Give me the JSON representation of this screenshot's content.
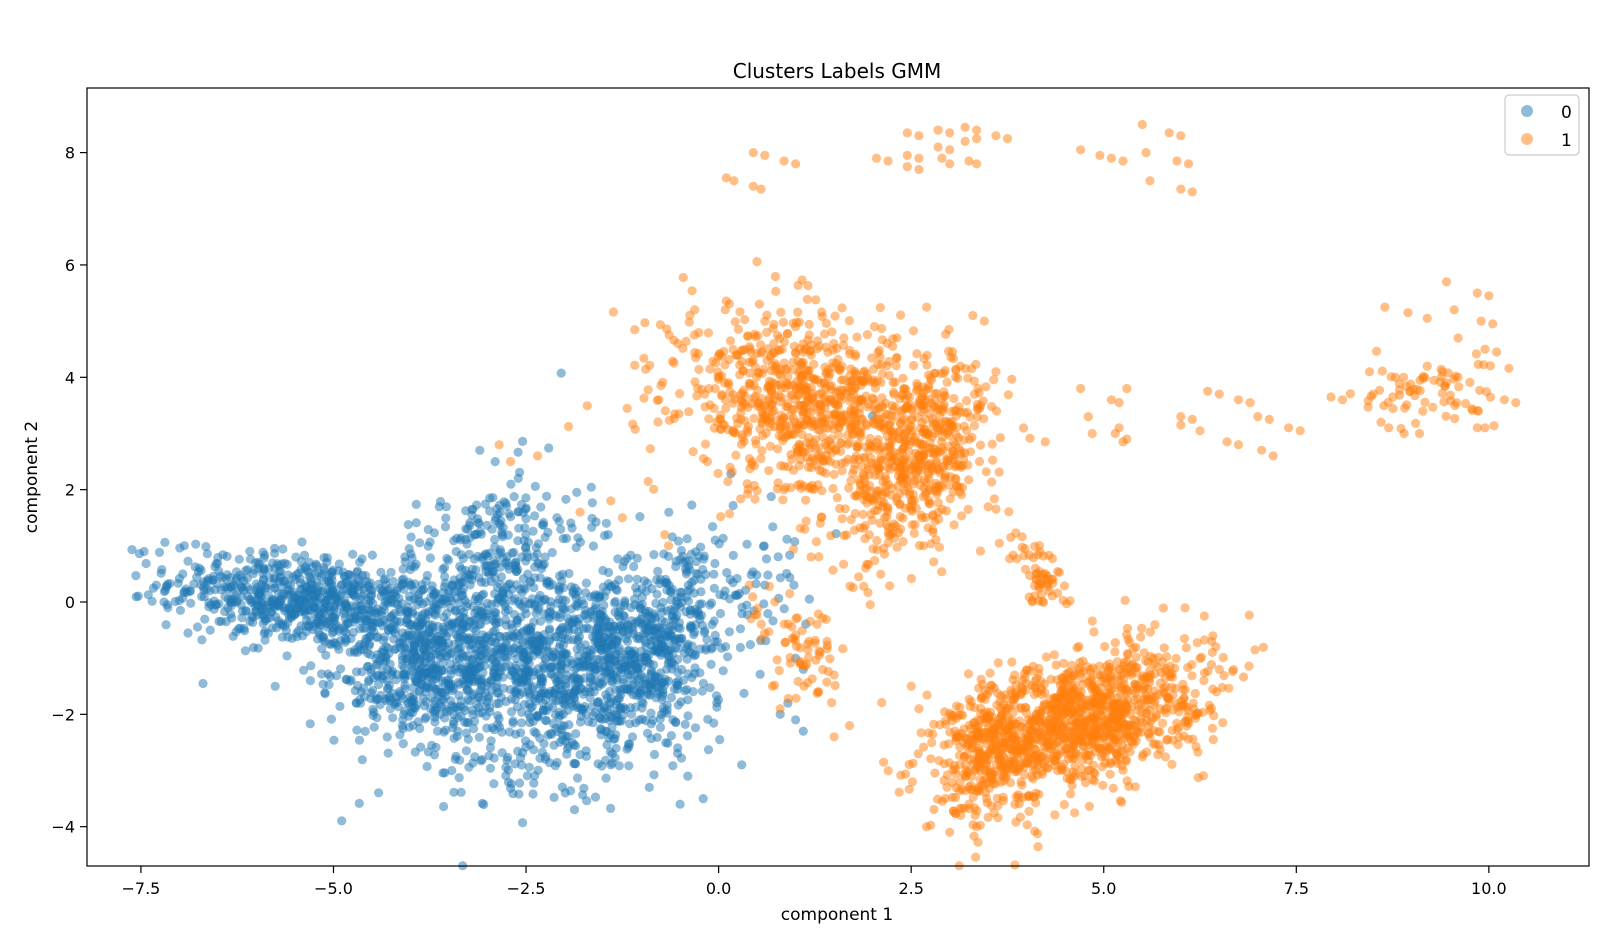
{
  "chart_data": {
    "type": "scatter",
    "title": "Clusters Labels GMM",
    "xlabel": "component 1",
    "ylabel": "component 2",
    "xlim": [
      -8.2,
      11.3
    ],
    "ylim": [
      -4.7,
      9.15
    ],
    "xticks": [
      -7.5,
      -5.0,
      -2.5,
      0.0,
      2.5,
      5.0,
      7.5,
      10.0
    ],
    "xtick_labels": [
      "−7.5",
      "−5.0",
      "−2.5",
      "0.0",
      "2.5",
      "5.0",
      "7.5",
      "10.0"
    ],
    "yticks": [
      -4,
      -2,
      0,
      2,
      4,
      6,
      8
    ],
    "ytick_labels": [
      "−4",
      "−2",
      "0",
      "2",
      "4",
      "6",
      "8"
    ],
    "grid": false,
    "legend_position": "top-right",
    "point_alpha": 0.5,
    "series": [
      {
        "name": "0",
        "color": "#1f77b4",
        "clusters": [
          {
            "cx": -5.3,
            "cy": 0.0,
            "sx": 0.9,
            "sy": 0.45,
            "rho": -0.4,
            "n": 750
          },
          {
            "cx": -3.2,
            "cy": 0.3,
            "sx": 0.7,
            "sy": 1.0,
            "rho": 0.55,
            "n": 450
          },
          {
            "cx": -2.0,
            "cy": -1.0,
            "sx": 0.9,
            "sy": 0.9,
            "rho": 0.4,
            "n": 950
          },
          {
            "cx": -0.9,
            "cy": -1.1,
            "sx": 0.8,
            "sy": 1.1,
            "rho": 0.65,
            "n": 500
          },
          {
            "cx": -3.8,
            "cy": -1.3,
            "sx": 0.6,
            "sy": 0.5,
            "rho": 0.3,
            "n": 350
          }
        ],
        "points": [
          [
            -7.3,
            0.3
          ],
          [
            -7.2,
            0.0
          ],
          [
            -7.15,
            -0.1
          ],
          [
            -6.6,
            -0.5
          ],
          [
            -5.3,
            -1.4
          ],
          [
            -4.7,
            -1.8
          ],
          [
            -4.1,
            -2.1
          ],
          [
            -3.1,
            2.7
          ],
          [
            -2.9,
            2.5
          ],
          [
            -2.6,
            2.2
          ],
          [
            -2.1,
            1.5
          ],
          [
            -1.4,
            -2.9
          ],
          [
            -0.9,
            -3.3
          ],
          [
            -0.5,
            -3.6
          ],
          [
            -0.2,
            -3.5
          ],
          [
            0.15,
            0.4
          ],
          [
            0.6,
            0.3
          ],
          [
            1.0,
            -1.0
          ],
          [
            1.1,
            -1.2
          ],
          [
            0.9,
            -1.8
          ],
          [
            1.1,
            -2.3
          ],
          [
            0.8,
            -2.0
          ],
          [
            1.0,
            -2.1
          ],
          [
            0.3,
            -2.9
          ],
          [
            -0.4,
            -3.1
          ]
        ]
      },
      {
        "name": "1",
        "color": "#ff7f0e",
        "clusters": [
          {
            "cx": 1.3,
            "cy": 3.4,
            "sx": 0.9,
            "sy": 0.85,
            "rho": -0.3,
            "n": 950
          },
          {
            "cx": 2.6,
            "cy": 2.5,
            "sx": 0.5,
            "sy": 0.9,
            "rho": 0.5,
            "n": 400
          },
          {
            "cx": 4.7,
            "cy": -2.1,
            "sx": 0.8,
            "sy": 0.65,
            "rho": 0.45,
            "n": 1100
          },
          {
            "cx": 3.5,
            "cy": -2.6,
            "sx": 0.35,
            "sy": 0.7,
            "rho": 0.3,
            "n": 250
          },
          {
            "cx": 4.2,
            "cy": 0.4,
            "sx": 0.2,
            "sy": 0.35,
            "rho": -0.6,
            "n": 60
          },
          {
            "cx": 1.0,
            "cy": -0.8,
            "sx": 0.3,
            "sy": 0.55,
            "rho": -0.5,
            "n": 70
          },
          {
            "cx": 9.2,
            "cy": 3.7,
            "sx": 0.45,
            "sy": 0.3,
            "rho": 0.0,
            "n": 70
          }
        ],
        "points": [
          [
            0.1,
            7.55
          ],
          [
            0.2,
            7.5
          ],
          [
            0.45,
            7.4
          ],
          [
            0.55,
            7.35
          ],
          [
            0.45,
            8.0
          ],
          [
            0.6,
            7.95
          ],
          [
            0.85,
            7.85
          ],
          [
            1.0,
            7.8
          ],
          [
            2.05,
            7.9
          ],
          [
            2.2,
            7.85
          ],
          [
            2.45,
            8.35
          ],
          [
            2.6,
            8.3
          ],
          [
            2.45,
            7.95
          ],
          [
            2.6,
            7.9
          ],
          [
            2.45,
            7.75
          ],
          [
            2.6,
            7.7
          ],
          [
            2.85,
            8.4
          ],
          [
            3.0,
            8.35
          ],
          [
            2.85,
            8.1
          ],
          [
            3.0,
            8.05
          ],
          [
            2.9,
            7.9
          ],
          [
            3.0,
            7.8
          ],
          [
            3.2,
            8.45
          ],
          [
            3.35,
            8.4
          ],
          [
            3.2,
            8.2
          ],
          [
            3.35,
            8.25
          ],
          [
            3.25,
            7.85
          ],
          [
            3.35,
            7.8
          ],
          [
            3.6,
            8.3
          ],
          [
            3.75,
            8.25
          ],
          [
            4.7,
            8.05
          ],
          [
            4.95,
            7.95
          ],
          [
            5.1,
            7.9
          ],
          [
            5.25,
            7.85
          ],
          [
            5.5,
            8.5
          ],
          [
            5.55,
            8.0
          ],
          [
            5.6,
            7.5
          ],
          [
            5.85,
            8.35
          ],
          [
            6.0,
            8.3
          ],
          [
            5.95,
            7.85
          ],
          [
            6.1,
            7.8
          ],
          [
            6.0,
            7.35
          ],
          [
            6.15,
            7.3
          ],
          [
            5.3,
            3.8
          ],
          [
            5.1,
            3.6
          ],
          [
            5.2,
            3.1
          ],
          [
            5.3,
            2.9
          ],
          [
            5.15,
            3.0
          ],
          [
            5.2,
            3.55
          ],
          [
            4.7,
            3.8
          ],
          [
            4.8,
            3.3
          ],
          [
            4.85,
            3.0
          ],
          [
            5.25,
            2.85
          ],
          [
            6.0,
            3.3
          ],
          [
            6.15,
            3.25
          ],
          [
            6.0,
            3.15
          ],
          [
            6.25,
            3.05
          ],
          [
            6.35,
            3.75
          ],
          [
            6.5,
            3.7
          ],
          [
            6.75,
            3.6
          ],
          [
            6.9,
            3.55
          ],
          [
            6.6,
            2.85
          ],
          [
            6.75,
            2.8
          ],
          [
            7.0,
            3.3
          ],
          [
            7.15,
            3.25
          ],
          [
            7.05,
            2.7
          ],
          [
            7.2,
            2.6
          ],
          [
            7.4,
            3.1
          ],
          [
            7.55,
            3.05
          ],
          [
            7.95,
            3.65
          ],
          [
            8.1,
            3.6
          ],
          [
            8.45,
            4.1
          ],
          [
            8.5,
            3.7
          ],
          [
            8.6,
            3.2
          ],
          [
            8.7,
            3.1
          ],
          [
            8.65,
            5.25
          ],
          [
            8.95,
            5.15
          ],
          [
            9.2,
            5.05
          ],
          [
            9.45,
            5.7
          ],
          [
            9.55,
            5.2
          ],
          [
            9.85,
            5.5
          ],
          [
            10.0,
            5.45
          ],
          [
            9.9,
            5.0
          ],
          [
            10.05,
            4.95
          ],
          [
            9.6,
            4.7
          ],
          [
            9.95,
            4.5
          ],
          [
            10.1,
            4.45
          ],
          [
            10.2,
            3.6
          ],
          [
            10.35,
            3.55
          ],
          [
            9.95,
            3.1
          ],
          [
            9.85,
            3.1
          ],
          [
            9.6,
            4.0
          ],
          [
            9.45,
            3.9
          ],
          [
            9.2,
            4.2
          ],
          [
            8.9,
            3.0
          ],
          [
            9.1,
            3.0
          ],
          [
            2.7,
            5.25
          ],
          [
            3.3,
            5.1
          ],
          [
            3.45,
            5.0
          ],
          [
            3.6,
            4.1
          ],
          [
            3.4,
            3.5
          ],
          [
            1.2,
            0.8
          ],
          [
            0.8,
            -1.9
          ],
          [
            0.7,
            -1.5
          ],
          [
            1.3,
            -1.6
          ],
          [
            1.5,
            -1.3
          ],
          [
            1.5,
            -2.4
          ],
          [
            1.7,
            -2.2
          ],
          [
            2.5,
            -1.5
          ],
          [
            2.6,
            -1.9
          ],
          [
            6.3,
            -1.4
          ],
          [
            6.5,
            -1.2
          ],
          [
            6.4,
            -0.7
          ],
          [
            -2.85,
            2.8
          ],
          [
            -2.7,
            2.5
          ],
          [
            -2.35,
            2.6
          ],
          [
            -1.4,
            1.8
          ],
          [
            -1.25,
            1.5
          ],
          [
            -0.7,
            1.2
          ],
          [
            -0.65,
            1.0
          ],
          [
            -1.8,
            1.6
          ],
          [
            3.0,
            -4.1
          ],
          [
            3.35,
            -4.0
          ],
          [
            2.7,
            -4.0
          ]
        ]
      }
    ]
  }
}
